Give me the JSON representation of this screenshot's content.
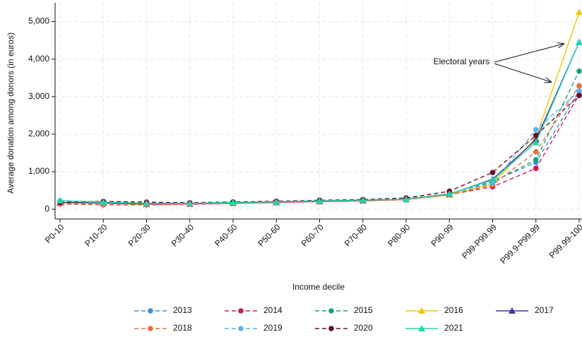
{
  "chart_data": {
    "type": "line",
    "x_label": "Income decile",
    "y_label": "Average donation among donors (in euros)",
    "annotation": "Electoral years",
    "categories": [
      "P0-10",
      "P10-20",
      "P20-30",
      "P30-40",
      "P40-50",
      "P50-60",
      "P60-70",
      "P70-80",
      "P80-90",
      "P90-99",
      "P99-P99.99",
      "P99.9-P99.99",
      "P99.99-100"
    ],
    "ylim": [
      -260,
      5500
    ],
    "yticks": [
      0,
      {
        "value": 1000,
        "label": "1,000"
      },
      {
        "value": 2000,
        "label": "2,000"
      },
      {
        "value": 3000,
        "label": "3,000"
      },
      {
        "value": 4000,
        "label": "4,000"
      },
      {
        "value": 5000,
        "label": "5,000"
      }
    ],
    "grid": true,
    "series": [
      {
        "name": "2013",
        "color": "#3c8fe6",
        "dashed": true,
        "marker": "circle",
        "values": [
          160,
          150,
          140,
          145,
          165,
          185,
          210,
          230,
          265,
          410,
          740,
          1250,
          3150
        ]
      },
      {
        "name": "2014",
        "color": "#d3135d",
        "dashed": true,
        "marker": "circle",
        "values": [
          140,
          120,
          115,
          130,
          155,
          175,
          200,
          220,
          255,
          390,
          600,
          1090,
          3050
        ]
      },
      {
        "name": "2015",
        "color": "#12a57a",
        "dashed": true,
        "marker": "circle",
        "values": [
          220,
          200,
          170,
          160,
          185,
          205,
          230,
          250,
          280,
          420,
          720,
          1320,
          3680
        ]
      },
      {
        "name": "2016",
        "color": "#f2c500",
        "dashed": false,
        "marker": "triangle",
        "values": [
          170,
          160,
          130,
          140,
          160,
          180,
          205,
          225,
          260,
          380,
          680,
          1900,
          5250
        ]
      },
      {
        "name": "2017",
        "color": "#4b2ea3",
        "dashed": false,
        "marker": "triangle",
        "values": [
          180,
          170,
          140,
          145,
          165,
          185,
          210,
          230,
          265,
          400,
          800,
          1850,
          4450
        ]
      },
      {
        "name": "2018",
        "color": "#f26b3d",
        "dashed": true,
        "marker": "circle",
        "values": [
          150,
          130,
          120,
          135,
          155,
          175,
          200,
          220,
          255,
          390,
          650,
          1530,
          3290
        ]
      },
      {
        "name": "2019",
        "color": "#56b4f0",
        "dashed": true,
        "marker": "circle",
        "values": [
          190,
          180,
          160,
          155,
          175,
          195,
          220,
          240,
          275,
          420,
          700,
          2120,
          3150
        ]
      },
      {
        "name": "2020",
        "color": "#6b0e22",
        "dashed": true,
        "marker": "circle",
        "values": [
          180,
          210,
          190,
          175,
          195,
          215,
          240,
          260,
          300,
          480,
          980,
          1970,
          3030
        ]
      },
      {
        "name": "2021",
        "color": "#1fd6b0",
        "dashed": false,
        "marker": "triangle",
        "values": [
          230,
          190,
          160,
          160,
          180,
          200,
          225,
          245,
          270,
          410,
          780,
          1780,
          4450
        ]
      }
    ]
  }
}
